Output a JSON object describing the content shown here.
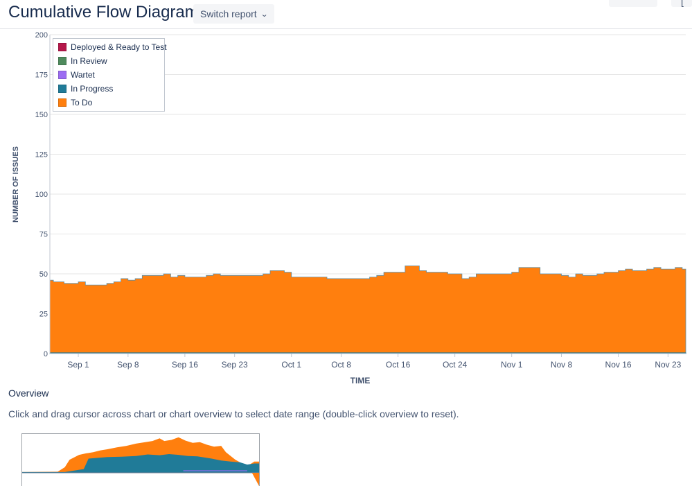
{
  "header": {
    "title": "Cumulative Flow Diagram",
    "switch_label": "Switch report"
  },
  "overview": {
    "title": "Overview",
    "description": "Click and drag cursor across chart or chart overview to select date range (double-click overview to reset)."
  },
  "colors": {
    "deployed": "#b5174a",
    "in_review": "#4e8a5c",
    "wartet": "#9c6cf2",
    "in_progress": "#207b98",
    "to_do": "#ff7f0e"
  },
  "chart_data": {
    "type": "area",
    "title": "",
    "xlabel": "TIME",
    "ylabel": "NUMBER OF ISSUES",
    "ylim": [
      0,
      200
    ],
    "yticks": [
      "0",
      "25",
      "50",
      "75",
      "100",
      "125",
      "150",
      "175",
      "200"
    ],
    "xticks": [
      "Sep 1",
      "Sep 8",
      "Sep 16",
      "Sep 23",
      "Oct 1",
      "Oct 8",
      "Oct 16",
      "Oct 24",
      "Nov 1",
      "Nov 8",
      "Nov 16",
      "Nov 23"
    ],
    "xtick_days": [
      5,
      12,
      20,
      27,
      35,
      42,
      50,
      58,
      66,
      73,
      81,
      88
    ],
    "xlim_days": [
      1,
      90.5
    ],
    "legend_location": "top-left",
    "legend": [
      "Deployed & Ready to Test",
      "In Review",
      "Wartet",
      "In Progress",
      "To Do"
    ],
    "series": [
      {
        "name": "Deployed & Ready to Test",
        "key": "deployed",
        "days": [
          1,
          90.5
        ],
        "values": [
          0,
          0
        ]
      },
      {
        "name": "In Review",
        "key": "in_review",
        "days": [
          1,
          90.5
        ],
        "values": [
          0,
          0
        ]
      },
      {
        "name": "Wartet",
        "key": "wartet",
        "days": [
          1,
          90.5
        ],
        "values": [
          0,
          0
        ]
      },
      {
        "name": "In Progress",
        "key": "in_progress",
        "days": [
          1,
          90.5
        ],
        "values": [
          0.5,
          0.5
        ]
      },
      {
        "name": "To Do",
        "key": "to_do",
        "days": [
          1,
          1.5,
          2,
          3,
          4,
          5,
          6,
          7,
          8,
          9,
          10,
          11,
          12,
          13,
          14,
          15,
          16,
          17,
          18,
          19,
          20,
          21,
          22,
          23,
          24,
          25,
          26,
          27,
          28,
          29,
          30,
          31,
          32,
          33,
          34,
          35,
          36,
          37,
          38,
          39,
          40,
          41,
          42,
          43,
          44,
          45,
          46,
          47,
          48,
          49,
          50,
          51,
          52,
          53,
          54,
          55,
          56,
          57,
          58,
          59,
          60,
          61,
          62,
          63,
          64,
          65,
          66,
          67,
          68,
          69,
          70,
          71,
          72,
          73,
          74,
          75,
          76,
          77,
          78,
          79,
          80,
          81,
          82,
          83,
          84,
          85,
          86,
          87,
          88,
          89,
          90,
          90.5
        ],
        "values": [
          46,
          45,
          45,
          44,
          44,
          45,
          43,
          43,
          43,
          44,
          45,
          47,
          46,
          47,
          49,
          49,
          49,
          50,
          48,
          49,
          48,
          48,
          48,
          49,
          50,
          49,
          49,
          49,
          49,
          49,
          49,
          50,
          52,
          52,
          51,
          48,
          48,
          48,
          48,
          48,
          47,
          47,
          47,
          47,
          47,
          47,
          48,
          49,
          51,
          51,
          51,
          55,
          55,
          52,
          51,
          51,
          51,
          50,
          50,
          47,
          48,
          50,
          50,
          50,
          50,
          50,
          51,
          54,
          54,
          54,
          50,
          50,
          50,
          49,
          48,
          50,
          49,
          49,
          50,
          51,
          51,
          52,
          53,
          52,
          52,
          53,
          54,
          53,
          53,
          54,
          53,
          53
        ]
      }
    ]
  },
  "overview_chart": {
    "type": "area",
    "series": [
      {
        "name": "In Progress",
        "key": "in_progress",
        "x": [
          0,
          0.18,
          0.21,
          0.26,
          0.28,
          0.32,
          0.36,
          0.42,
          0.48,
          0.53,
          0.58,
          0.62,
          0.66,
          0.7,
          0.74,
          0.8,
          0.84,
          0.88,
          0.92,
          0.95,
          0.98,
          1.0
        ],
        "values": [
          0.02,
          0.02,
          0.05,
          0.1,
          0.38,
          0.4,
          0.42,
          0.43,
          0.45,
          0.49,
          0.47,
          0.5,
          0.48,
          0.45,
          0.44,
          0.38,
          0.33,
          0.3,
          0.28,
          0.22,
          0.25,
          0.25
        ]
      },
      {
        "name": "To Do",
        "key": "to_do",
        "x": [
          0,
          0.15,
          0.18,
          0.2,
          0.24,
          0.27,
          0.3,
          0.33,
          0.36,
          0.4,
          0.44,
          0.48,
          0.52,
          0.55,
          0.58,
          0.6,
          0.63,
          0.66,
          0.69,
          0.72,
          0.75,
          0.78,
          0.81,
          0.84,
          0.86,
          0.88,
          0.9,
          0.92,
          0.95,
          0.98,
          1.0
        ],
        "values": [
          0.02,
          0.03,
          0.15,
          0.35,
          0.48,
          0.52,
          0.55,
          0.6,
          0.63,
          0.68,
          0.72,
          0.78,
          0.82,
          0.85,
          0.92,
          0.85,
          0.88,
          0.95,
          0.86,
          0.8,
          0.82,
          0.75,
          0.7,
          0.72,
          0.55,
          0.45,
          0.35,
          0.28,
          0.18,
          0.3,
          0.3
        ]
      }
    ]
  }
}
